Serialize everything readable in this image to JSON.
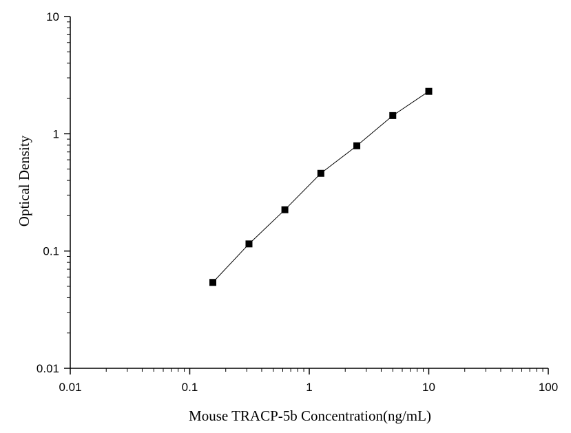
{
  "chart_data": {
    "type": "scatter",
    "title": "",
    "xlabel": "Mouse TRACP-5b Concentration(ng/mL)",
    "ylabel": "Optical Density",
    "xscale": "log",
    "yscale": "log",
    "xlim": [
      0.01,
      100
    ],
    "ylim": [
      0.01,
      10
    ],
    "grid": false,
    "legend": "none",
    "xticks": [
      {
        "value": 0.01,
        "label": "0.01"
      },
      {
        "value": 0.1,
        "label": "0.1"
      },
      {
        "value": 1,
        "label": "1"
      },
      {
        "value": 10,
        "label": "10"
      },
      {
        "value": 100,
        "label": "100"
      }
    ],
    "yticks": [
      {
        "value": 0.01,
        "label": "0.01"
      },
      {
        "value": 0.1,
        "label": "0.1"
      },
      {
        "value": 1,
        "label": "1"
      },
      {
        "value": 10,
        "label": "10"
      }
    ],
    "series": [
      {
        "marker": "square",
        "color": "#000000",
        "connected": true,
        "x": [
          0.156,
          0.313,
          0.625,
          1.25,
          2.5,
          5,
          10
        ],
        "y": [
          0.054,
          0.115,
          0.225,
          0.46,
          0.79,
          1.43,
          2.3
        ]
      }
    ]
  }
}
